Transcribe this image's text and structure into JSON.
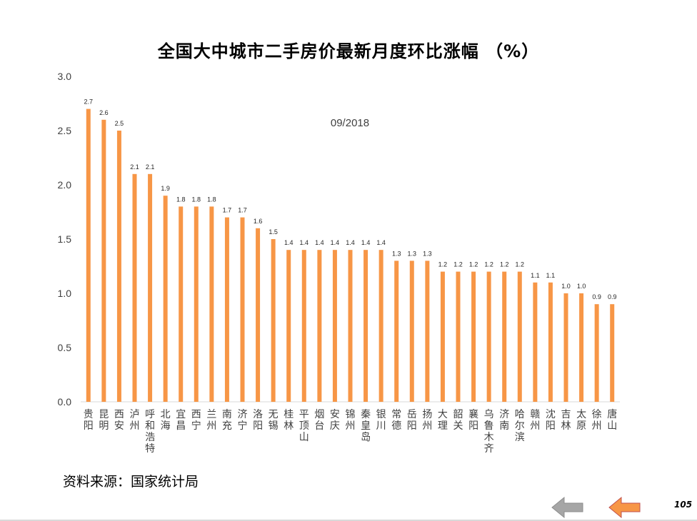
{
  "title": "全国大中城市二手房价最新月度环比涨幅 （%）",
  "source": "资料来源：国家统计局",
  "page_number": "105",
  "colors": {
    "bar": "#F79646",
    "axis": "#d9d9d9",
    "nav_back": "#a6a6a6",
    "nav_next": "#F79646"
  },
  "nav": {
    "back_icon": "left-arrow-icon",
    "next_icon": "left-arrow-icon"
  },
  "chart_data": {
    "type": "bar",
    "annotation": "09/2018",
    "ylim": [
      0,
      3.0
    ],
    "yticks": [
      "0.0",
      "0.5",
      "1.0",
      "1.5",
      "2.0",
      "2.5",
      "3.0"
    ],
    "categories": [
      "贵阳",
      "昆明",
      "西安",
      "泸州",
      "呼和浩特",
      "北海",
      "宜昌",
      "西宁",
      "兰州",
      "南充",
      "济宁",
      "洛阳",
      "无锡",
      "桂林",
      "平顶山",
      "烟台",
      "安庆",
      "锦州",
      "秦皇岛",
      "银川",
      "常德",
      "岳阳",
      "扬州",
      "大理",
      "韶关",
      "襄阳",
      "乌鲁木齐",
      "济南",
      "哈尔滨",
      "赣州",
      "沈阳",
      "吉林",
      "太原",
      "徐州",
      "唐山"
    ],
    "values": [
      2.7,
      2.6,
      2.5,
      2.1,
      2.1,
      1.9,
      1.8,
      1.8,
      1.8,
      1.7,
      1.7,
      1.6,
      1.5,
      1.4,
      1.4,
      1.4,
      1.4,
      1.4,
      1.4,
      1.4,
      1.3,
      1.3,
      1.3,
      1.2,
      1.2,
      1.2,
      1.2,
      1.2,
      1.2,
      1.1,
      1.1,
      1.0,
      1.0,
      0.9,
      0.9
    ],
    "labels": [
      "2.7",
      "2.6",
      "2.5",
      "2.1",
      "2.1",
      "1.9",
      "1.8",
      "1.8",
      "1.8",
      "1.7",
      "1.7",
      "1.6",
      "1.5",
      "1.4",
      "1.4",
      "1.4",
      "1.4",
      "1.4",
      "1.4",
      "1.4",
      "1.3",
      "1.3",
      "1.3",
      "1.2",
      "1.2",
      "1.2",
      "1.2",
      "1.2",
      "1.2",
      "1.1",
      "1.1",
      "1.0",
      "1.0",
      "0.9",
      "0.9"
    ]
  }
}
